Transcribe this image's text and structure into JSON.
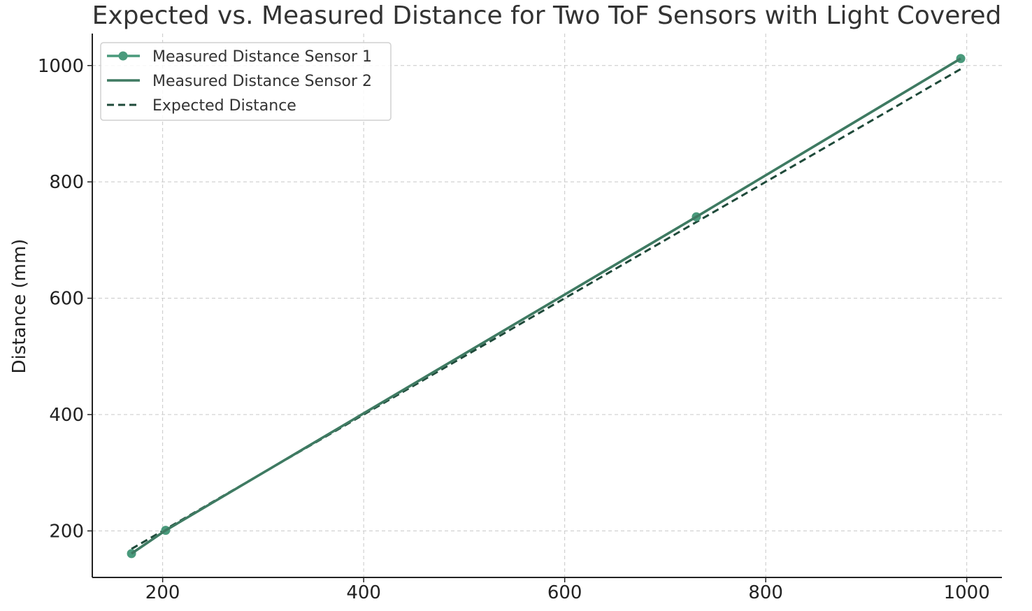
{
  "chart_data": {
    "type": "line",
    "title": "Expected vs. Measured Distance for Two ToF Sensors with Light Covered",
    "xlabel": "",
    "ylabel": "Distance (mm)",
    "xlim": [
      130,
      1035
    ],
    "ylim": [
      120,
      1055
    ],
    "x_ticks": [
      200,
      400,
      600,
      800,
      1000
    ],
    "y_ticks": [
      200,
      400,
      600,
      800,
      1000
    ],
    "grid": true,
    "legend_position": "top-left",
    "series": [
      {
        "name": "Measured Distance Sensor 1",
        "color": "#4a9a7c",
        "style": "solid",
        "marker": "circle",
        "x": [
          169,
          203,
          731,
          994
        ],
        "y": [
          161,
          201,
          740,
          1012
        ]
      },
      {
        "name": "Measured Distance Sensor 2",
        "color": "#3f7a62",
        "style": "solid",
        "marker": "none",
        "x": [
          169,
          203,
          731,
          994
        ],
        "y": [
          161,
          201,
          740,
          1012
        ]
      },
      {
        "name": "Expected Distance",
        "color": "#1f4a3a",
        "style": "dashed",
        "marker": "none",
        "x": [
          169,
          203,
          731,
          994
        ],
        "y": [
          169,
          203,
          731,
          994
        ]
      }
    ]
  }
}
